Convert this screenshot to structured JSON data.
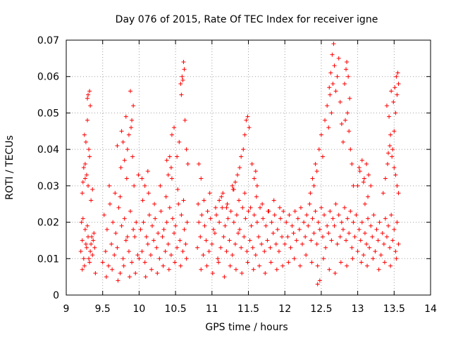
{
  "chart_data": {
    "type": "scatter",
    "title": "Day 076 of 2015, Rate Of TEC Index for receiver igne",
    "xlabel": "GPS time / hours",
    "ylabel": "ROTI / TECUs",
    "xlim": [
      9,
      14
    ],
    "ylim": [
      0,
      0.07
    ],
    "x_ticks": [
      "9",
      "9.5",
      "10",
      "10.5",
      "11",
      "11.5",
      "12",
      "12.5",
      "13",
      "13.5",
      "14"
    ],
    "y_ticks": [
      "0",
      "0.01",
      "0.02",
      "0.03",
      "0.04",
      "0.05",
      "0.06",
      "0.07"
    ],
    "grid": true,
    "marker": "+",
    "color": "#ff0000",
    "series": [
      {
        "name": "ROTI",
        "x": [
          9.2,
          9.22,
          9.24,
          9.26,
          9.28,
          9.3,
          9.32,
          9.34,
          9.36,
          9.38,
          9.21,
          9.25,
          9.29,
          9.33,
          9.37,
          9.23,
          9.27,
          9.31,
          9.35,
          9.39,
          9.22,
          9.26,
          9.3,
          9.34,
          9.24,
          9.28,
          9.32,
          9.36,
          9.27,
          9.31,
          9.25,
          9.29,
          9.33,
          9.3,
          9.32,
          9.29,
          9.23,
          9.26,
          9.4,
          9.22,
          9.5,
          9.54,
          9.58,
          9.62,
          9.66,
          9.7,
          9.74,
          9.78,
          9.82,
          9.86,
          9.9,
          9.94,
          9.98,
          9.52,
          9.56,
          9.6,
          9.64,
          9.68,
          9.72,
          9.76,
          9.8,
          9.84,
          9.88,
          9.92,
          9.96,
          9.55,
          9.63,
          9.71,
          9.79,
          9.87,
          9.95,
          9.59,
          9.67,
          9.75,
          9.83,
          9.91,
          9.99,
          9.78,
          9.82,
          9.86,
          9.9,
          9.88,
          9.92,
          9.84,
          9.8,
          9.76,
          9.93,
          9.74,
          9.7,
          9.89,
          10.0,
          10.04,
          10.08,
          10.12,
          10.16,
          10.2,
          10.24,
          10.28,
          10.32,
          10.36,
          10.4,
          10.44,
          10.48,
          10.52,
          10.56,
          10.6,
          10.64,
          10.02,
          10.06,
          10.1,
          10.14,
          10.18,
          10.22,
          10.26,
          10.3,
          10.34,
          10.38,
          10.42,
          10.46,
          10.5,
          10.54,
          10.58,
          10.62,
          10.66,
          10.05,
          10.13,
          10.21,
          10.29,
          10.37,
          10.45,
          10.53,
          10.61,
          10.09,
          10.17,
          10.25,
          10.33,
          10.41,
          10.49,
          10.57,
          10.65,
          10.04,
          10.08,
          10.12,
          10.45,
          10.48,
          10.42,
          10.58,
          10.6,
          10.62,
          10.57,
          10.59,
          10.61,
          10.63,
          10.65,
          10.67,
          10.55,
          10.52,
          10.4,
          10.38,
          10.44,
          10.8,
          10.84,
          10.88,
          10.92,
          10.96,
          11.0,
          11.04,
          11.08,
          11.12,
          11.16,
          11.2,
          11.24,
          11.28,
          11.32,
          11.36,
          11.4,
          11.44,
          11.48,
          11.52,
          11.56,
          11.6,
          11.64,
          11.68,
          11.72,
          11.76,
          11.8,
          11.84,
          11.88,
          11.92,
          11.96,
          10.82,
          10.86,
          10.9,
          10.94,
          10.98,
          11.02,
          11.06,
          11.1,
          11.14,
          11.18,
          11.22,
          11.26,
          11.3,
          11.34,
          11.38,
          11.42,
          11.46,
          11.5,
          11.54,
          11.58,
          11.62,
          11.66,
          11.7,
          11.74,
          11.78,
          11.82,
          11.86,
          11.9,
          11.94,
          11.98,
          10.81,
          10.89,
          10.97,
          11.05,
          11.13,
          11.21,
          11.29,
          11.37,
          11.45,
          11.53,
          11.61,
          11.69,
          11.77,
          11.85,
          11.93,
          10.85,
          10.93,
          11.01,
          11.09,
          11.17,
          11.25,
          11.33,
          11.41,
          11.49,
          11.57,
          11.65,
          11.73,
          11.81,
          11.89,
          11.97,
          11.45,
          11.47,
          11.49,
          11.51,
          11.43,
          11.4,
          11.38,
          11.35,
          11.55,
          11.58,
          11.6,
          11.62,
          11.32,
          11.3,
          11.28,
          10.82,
          10.85,
          11.1,
          11.15,
          11.2,
          12.0,
          12.04,
          12.08,
          12.12,
          12.16,
          12.2,
          12.24,
          12.28,
          12.32,
          12.36,
          12.4,
          12.44,
          12.48,
          12.52,
          12.56,
          12.6,
          12.64,
          12.68,
          12.72,
          12.76,
          12.8,
          12.84,
          12.88,
          12.92,
          12.96,
          12.02,
          12.06,
          12.1,
          12.14,
          12.18,
          12.22,
          12.26,
          12.3,
          12.34,
          12.38,
          12.42,
          12.46,
          12.5,
          12.54,
          12.58,
          12.62,
          12.66,
          12.7,
          12.74,
          12.78,
          12.82,
          12.86,
          12.9,
          12.94,
          12.98,
          12.05,
          12.13,
          12.21,
          12.29,
          12.37,
          12.45,
          12.53,
          12.61,
          12.69,
          12.77,
          12.85,
          12.93,
          12.35,
          12.38,
          12.4,
          12.42,
          12.44,
          12.47,
          12.5,
          12.52,
          12.55,
          12.58,
          12.6,
          12.62,
          12.64,
          12.66,
          12.68,
          12.7,
          12.72,
          12.74,
          12.76,
          12.78,
          12.8,
          12.82,
          12.84,
          12.86,
          12.88,
          12.9,
          12.92,
          12.94,
          12.65,
          12.67,
          12.63,
          12.61,
          12.85,
          12.87,
          12.89,
          12.83,
          12.45,
          12.48,
          13.0,
          13.04,
          13.08,
          13.12,
          13.16,
          13.2,
          13.24,
          13.28,
          13.32,
          13.36,
          13.4,
          13.44,
          13.48,
          13.52,
          13.56,
          13.02,
          13.06,
          13.1,
          13.14,
          13.18,
          13.22,
          13.26,
          13.3,
          13.34,
          13.38,
          13.42,
          13.46,
          13.5,
          13.54,
          13.05,
          13.13,
          13.21,
          13.29,
          13.37,
          13.45,
          13.53,
          13.0,
          13.03,
          13.06,
          13.09,
          13.12,
          13.15,
          13.18,
          13.35,
          13.38,
          13.41,
          13.44,
          13.47,
          13.5,
          13.52,
          13.54,
          13.56,
          13.4,
          13.43,
          13.46,
          13.49,
          13.51,
          13.53,
          13.55,
          13.48,
          13.45,
          13.42,
          13.5,
          13.52,
          13.54,
          13.56,
          13.1,
          13.14,
          13.02,
          13.08
        ],
        "y": [
          0.012,
          0.015,
          0.01,
          0.018,
          0.013,
          0.016,
          0.009,
          0.014,
          0.011,
          0.017,
          0.02,
          0.008,
          0.019,
          0.012,
          0.015,
          0.021,
          0.014,
          0.01,
          0.016,
          0.013,
          0.028,
          0.032,
          0.03,
          0.026,
          0.035,
          0.033,
          0.038,
          0.029,
          0.042,
          0.04,
          0.044,
          0.048,
          0.052,
          0.055,
          0.056,
          0.054,
          0.031,
          0.036,
          0.006,
          0.007,
          0.009,
          0.012,
          0.008,
          0.014,
          0.011,
          0.013,
          0.006,
          0.01,
          0.015,
          0.012,
          0.009,
          0.016,
          0.011,
          0.022,
          0.018,
          0.025,
          0.02,
          0.017,
          0.024,
          0.019,
          0.021,
          0.016,
          0.023,
          0.018,
          0.02,
          0.005,
          0.007,
          0.004,
          0.008,
          0.005,
          0.006,
          0.03,
          0.028,
          0.035,
          0.032,
          0.038,
          0.033,
          0.042,
          0.049,
          0.044,
          0.048,
          0.056,
          0.052,
          0.04,
          0.037,
          0.045,
          0.03,
          0.027,
          0.041,
          0.046,
          0.01,
          0.012,
          0.009,
          0.014,
          0.011,
          0.015,
          0.013,
          0.01,
          0.016,
          0.012,
          0.014,
          0.011,
          0.017,
          0.013,
          0.015,
          0.012,
          0.014,
          0.018,
          0.02,
          0.016,
          0.022,
          0.019,
          0.021,
          0.017,
          0.023,
          0.018,
          0.02,
          0.024,
          0.021,
          0.019,
          0.025,
          0.022,
          0.018,
          0.02,
          0.026,
          0.028,
          0.025,
          0.03,
          0.027,
          0.032,
          0.029,
          0.026,
          0.005,
          0.007,
          0.006,
          0.008,
          0.007,
          0.009,
          0.008,
          0.01,
          0.032,
          0.03,
          0.034,
          0.044,
          0.046,
          0.038,
          0.055,
          0.059,
          0.062,
          0.058,
          0.06,
          0.064,
          0.048,
          0.04,
          0.036,
          0.042,
          0.038,
          0.033,
          0.037,
          0.035,
          0.013,
          0.016,
          0.011,
          0.015,
          0.012,
          0.014,
          0.017,
          0.01,
          0.013,
          0.016,
          0.012,
          0.015,
          0.011,
          0.014,
          0.017,
          0.013,
          0.016,
          0.012,
          0.015,
          0.013,
          0.011,
          0.016,
          0.014,
          0.012,
          0.015,
          0.013,
          0.017,
          0.014,
          0.012,
          0.016,
          0.02,
          0.022,
          0.019,
          0.023,
          0.021,
          0.018,
          0.022,
          0.02,
          0.024,
          0.019,
          0.021,
          0.023,
          0.02,
          0.022,
          0.018,
          0.024,
          0.021,
          0.023,
          0.019,
          0.022,
          0.02,
          0.024,
          0.021,
          0.019,
          0.023,
          0.02,
          0.022,
          0.018,
          0.021,
          0.023,
          0.025,
          0.026,
          0.028,
          0.024,
          0.027,
          0.025,
          0.029,
          0.026,
          0.028,
          0.024,
          0.027,
          0.025,
          0.023,
          0.026,
          0.024,
          0.007,
          0.008,
          0.006,
          0.009,
          0.005,
          0.008,
          0.007,
          0.006,
          0.009,
          0.007,
          0.008,
          0.006,
          0.009,
          0.007,
          0.008,
          0.044,
          0.048,
          0.049,
          0.046,
          0.04,
          0.038,
          0.035,
          0.033,
          0.036,
          0.032,
          0.034,
          0.03,
          0.031,
          0.029,
          0.03,
          0.036,
          0.032,
          0.026,
          0.028,
          0.024,
          0.014,
          0.016,
          0.013,
          0.017,
          0.015,
          0.018,
          0.014,
          0.016,
          0.019,
          0.015,
          0.017,
          0.014,
          0.018,
          0.016,
          0.013,
          0.017,
          0.015,
          0.019,
          0.014,
          0.016,
          0.018,
          0.015,
          0.017,
          0.013,
          0.016,
          0.02,
          0.022,
          0.019,
          0.023,
          0.021,
          0.024,
          0.02,
          0.022,
          0.025,
          0.021,
          0.023,
          0.02,
          0.024,
          0.022,
          0.019,
          0.023,
          0.021,
          0.025,
          0.022,
          0.02,
          0.024,
          0.021,
          0.023,
          0.02,
          0.022,
          0.009,
          0.01,
          0.008,
          0.011,
          0.009,
          0.008,
          0.01,
          0.007,
          0.006,
          0.009,
          0.008,
          0.01,
          0.028,
          0.032,
          0.03,
          0.036,
          0.034,
          0.04,
          0.044,
          0.038,
          0.048,
          0.052,
          0.046,
          0.055,
          0.05,
          0.058,
          0.063,
          0.056,
          0.06,
          0.065,
          0.053,
          0.047,
          0.042,
          0.058,
          0.062,
          0.05,
          0.045,
          0.04,
          0.036,
          0.03,
          0.066,
          0.069,
          0.061,
          0.057,
          0.064,
          0.06,
          0.054,
          0.048,
          0.003,
          0.004,
          0.012,
          0.015,
          0.011,
          0.014,
          0.013,
          0.016,
          0.012,
          0.015,
          0.011,
          0.014,
          0.016,
          0.013,
          0.015,
          0.012,
          0.014,
          0.018,
          0.02,
          0.017,
          0.021,
          0.019,
          0.022,
          0.018,
          0.02,
          0.017,
          0.021,
          0.019,
          0.022,
          0.018,
          0.02,
          0.009,
          0.008,
          0.01,
          0.007,
          0.009,
          0.008,
          0.01,
          0.03,
          0.034,
          0.037,
          0.032,
          0.036,
          0.033,
          0.03,
          0.028,
          0.032,
          0.036,
          0.041,
          0.038,
          0.045,
          0.05,
          0.055,
          0.058,
          0.052,
          0.049,
          0.056,
          0.053,
          0.057,
          0.06,
          0.061,
          0.04,
          0.044,
          0.039,
          0.035,
          0.033,
          0.03,
          0.028,
          0.025,
          0.027,
          0.035,
          0.031
        ]
      }
    ]
  }
}
